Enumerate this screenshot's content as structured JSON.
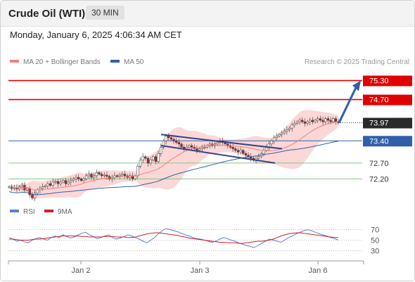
{
  "header": {
    "title": "Crude Oil (WTI)",
    "timeframe": "30 MIN"
  },
  "timestamp": "Monday, January 6, 2025 4:06:34 AM CET",
  "legend": {
    "ma20": "MA 20 + Bollinger Bands",
    "ma50": "MA 50",
    "credit": "Research © 2025 Trading Central",
    "rsi": "RSI",
    "rsi_ma": "9MA"
  },
  "colors": {
    "resistance": "#e00000",
    "support": "#7fc97f",
    "current": "#2a2a2a",
    "pivot": "#3060a8",
    "ma20": "#f08080",
    "ma50": "#3060a8",
    "bollinger": "#fbd0d0",
    "candle_up": "#ffffff",
    "candle_down": "#c02020",
    "rsi": "#5a7fd8",
    "rsi_ma": "#d02020"
  },
  "chart_data": [
    {
      "type": "candlestick",
      "title": "Crude Oil (WTI)",
      "ylim": [
        71.5,
        75.6
      ],
      "x_ticks": [
        "Jan 2",
        "Jan 3",
        "Jan 6"
      ],
      "levels": [
        {
          "label": "75.30",
          "value": 75.3,
          "kind": "resistance"
        },
        {
          "label": "74.70",
          "value": 74.7,
          "kind": "resistance"
        },
        {
          "label": "73.97",
          "value": 73.97,
          "kind": "current"
        },
        {
          "label": "73.40",
          "value": 73.4,
          "kind": "pivot"
        },
        {
          "label": "72.70",
          "value": 72.7,
          "kind": "support"
        },
        {
          "label": "72.20",
          "value": 72.2,
          "kind": "support"
        }
      ],
      "close_series": [
        71.95,
        71.9,
        71.92,
        71.88,
        71.95,
        72.0,
        71.85,
        71.9,
        71.7,
        71.6,
        71.75,
        71.85,
        71.9,
        71.95,
        71.98,
        72.05,
        72.0,
        72.1,
        72.12,
        72.05,
        72.1,
        72.15,
        72.05,
        72.1,
        72.15,
        72.2,
        72.25,
        72.2,
        72.15,
        72.2,
        72.3,
        72.35,
        72.25,
        72.3,
        72.4,
        72.35,
        72.3,
        72.32,
        72.28,
        72.2,
        72.25,
        72.3,
        72.28,
        72.32,
        72.35,
        72.3,
        72.25,
        72.3,
        72.2,
        72.3,
        72.6,
        72.8,
        72.9,
        72.85,
        72.7,
        72.8,
        72.9,
        72.75,
        73.0,
        73.2,
        73.4,
        73.55,
        73.5,
        73.45,
        73.4,
        73.35,
        73.3,
        73.2,
        73.15,
        73.2,
        73.25,
        73.2,
        73.15,
        73.1,
        73.15,
        73.2,
        73.2,
        73.25,
        73.3,
        73.25,
        73.3,
        73.35,
        73.4,
        73.35,
        73.3,
        73.25,
        73.2,
        73.15,
        73.1,
        73.05,
        73.1,
        73.0,
        72.95,
        72.9,
        72.85,
        72.8,
        72.85,
        72.9,
        73.0,
        73.1,
        73.2,
        73.3,
        73.4,
        73.5,
        73.55,
        73.6,
        73.65,
        73.7,
        73.75,
        73.8,
        73.9,
        73.95,
        74.0,
        74.05,
        74.0,
        73.95,
        74.0,
        74.05,
        74.0,
        74.05,
        74.1,
        74.05,
        74.0,
        74.1,
        74.05,
        74.0,
        74.1,
        74.0,
        73.97
      ],
      "trend_arrow": {
        "from": 73.97,
        "to": 75.3
      },
      "channel": {
        "upper": [
          73.6,
          73.15
        ],
        "lower": [
          73.25,
          72.7
        ]
      }
    },
    {
      "type": "line",
      "title": "RSI",
      "ylim": [
        20,
        80
      ],
      "y_ticks": [
        70,
        50,
        30
      ],
      "series": [
        {
          "name": "RSI",
          "values": [
            55,
            52,
            48,
            50,
            47,
            45,
            50,
            53,
            55,
            52,
            50,
            55,
            58,
            55,
            60,
            57,
            54,
            56,
            60,
            63,
            65,
            60,
            57,
            53,
            55,
            58,
            60,
            55,
            52,
            54,
            57,
            60,
            58,
            55,
            52,
            48,
            45,
            50,
            55,
            62,
            68,
            72,
            70,
            68,
            66,
            63,
            60,
            58,
            55,
            53,
            52,
            50,
            48,
            46,
            48,
            52,
            55,
            53,
            50,
            48,
            45,
            42,
            40,
            38,
            36,
            40,
            44,
            48,
            52,
            50,
            48,
            46,
            50,
            55,
            58,
            62,
            65,
            68,
            70,
            68,
            65,
            62,
            60,
            58,
            55,
            53,
            50
          ]
        },
        {
          "name": "9MA",
          "values": [
            52,
            52,
            51,
            50,
            50,
            50,
            51,
            52,
            52,
            53,
            54,
            55,
            56,
            57,
            58,
            58,
            58,
            58,
            58,
            57,
            57,
            56,
            56,
            56,
            56,
            57,
            57,
            57,
            56,
            56,
            56,
            55,
            55,
            56,
            58,
            60,
            62,
            63,
            64,
            64,
            63,
            62,
            61,
            60,
            59,
            57,
            56,
            54,
            53,
            52,
            51,
            50,
            49,
            48,
            47,
            46,
            46,
            45,
            45,
            45,
            44,
            44,
            45,
            46,
            47,
            48,
            48,
            49,
            50,
            52,
            55,
            58,
            60,
            62,
            63,
            64,
            64,
            63,
            62,
            61,
            60,
            59,
            58,
            57,
            56,
            55,
            55
          ]
        }
      ]
    }
  ]
}
